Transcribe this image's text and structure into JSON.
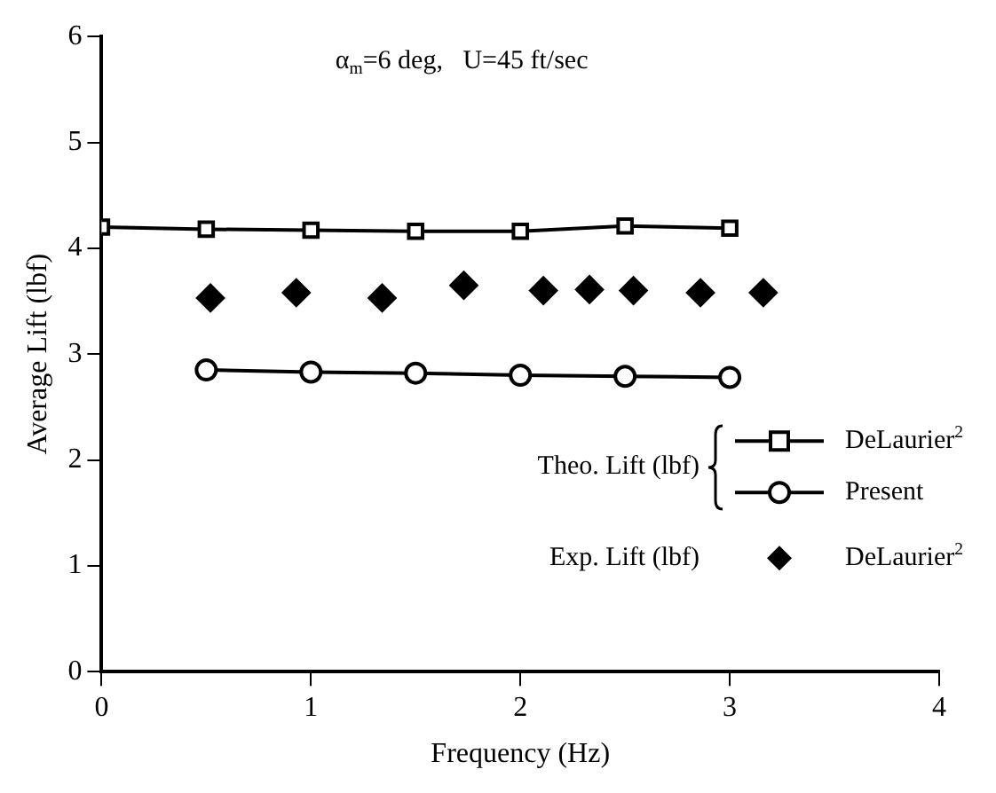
{
  "chart_data": {
    "type": "line",
    "title": "α$_{m}$=6 deg,   U=45 ft/sec",
    "xlabel": "Frequency (Hz)",
    "ylabel": "Average Lift (lbf)",
    "xlim": [
      0,
      4
    ],
    "xticks": [
      0,
      1,
      2,
      3,
      4
    ],
    "ylim": [
      0,
      6
    ],
    "yticks": [
      0,
      1,
      2,
      3,
      4,
      5,
      6
    ],
    "grid": false,
    "legend": "bottom right",
    "annotations": [
      "Theo. Lift (lbf)",
      "Exp. Lift (lbf)"
    ],
    "series": [
      {
        "name": "DeLaurier$^{2}$",
        "marker": "square",
        "color": "#000000",
        "x": [
          0,
          0.5,
          1.0,
          1.5,
          2.0,
          2.5,
          3.0
        ],
        "values": [
          4.2,
          4.18,
          4.17,
          4.16,
          4.16,
          4.21,
          4.19
        ]
      },
      {
        "name": "Present",
        "marker": "circle",
        "color": "#000000",
        "x": [
          0.5,
          1.0,
          1.5,
          2.0,
          2.5,
          3.0
        ],
        "values": [
          2.85,
          2.83,
          2.82,
          2.8,
          2.79,
          2.78
        ]
      },
      {
        "name": "DeLaurier$^{2}$",
        "type": "scatter",
        "marker": "diamond",
        "color": "#000000",
        "x": [
          0.52,
          0.93,
          1.34,
          1.73,
          2.11,
          2.33,
          2.54,
          2.86,
          3.16
        ],
        "values": [
          3.53,
          3.58,
          3.53,
          3.65,
          3.6,
          3.61,
          3.6,
          3.58,
          3.58
        ]
      }
    ]
  }
}
